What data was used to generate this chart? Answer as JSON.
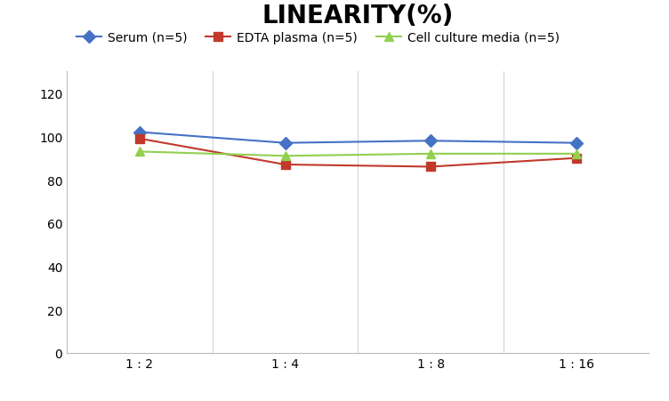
{
  "title": "LINEARITY(%)",
  "x_labels": [
    "1 : 2",
    "1 : 4",
    "1 : 8",
    "1 : 16"
  ],
  "x_positions": [
    0,
    1,
    2,
    3
  ],
  "series": [
    {
      "label": "Serum (n=5)",
      "values": [
        102,
        97,
        98,
        97
      ],
      "color": "#4472C4",
      "marker": "D",
      "markersize": 7,
      "linewidth": 1.5
    },
    {
      "label": "EDTA plasma (n=5)",
      "values": [
        99,
        87,
        86,
        90
      ],
      "color": "#C0392B",
      "marker": "s",
      "markersize": 7,
      "linewidth": 1.5
    },
    {
      "label": "Cell culture media (n=5)",
      "values": [
        93,
        91,
        92,
        92
      ],
      "color": "#92D050",
      "marker": "^",
      "markersize": 7,
      "linewidth": 1.5
    }
  ],
  "ylim": [
    0,
    130
  ],
  "yticks": [
    0,
    20,
    40,
    60,
    80,
    100,
    120
  ],
  "grid_color": "#D3D3D3",
  "background_color": "#FFFFFF",
  "title_fontsize": 20,
  "title_fontweight": "bold",
  "legend_fontsize": 10,
  "tick_fontsize": 10,
  "xlim": [
    -0.5,
    3.5
  ]
}
